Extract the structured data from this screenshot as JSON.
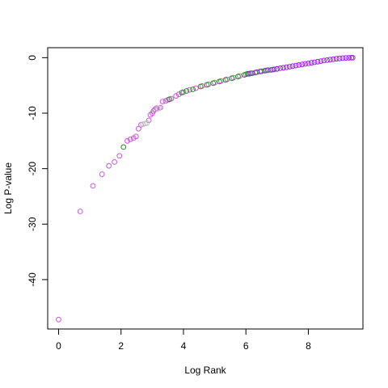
{
  "chart_data": {
    "type": "scatter",
    "title": "",
    "xlabel": "Log Rank",
    "ylabel": "Log P-value",
    "xlim": [
      -0.35,
      9.75
    ],
    "ylim": [
      -48.9,
      1.8
    ],
    "xticks": [
      0,
      2,
      4,
      6,
      8
    ],
    "yticks": [
      0,
      -10,
      -20,
      -30,
      -40
    ],
    "xtick_labels": [
      "0",
      "2",
      "4",
      "6",
      "8"
    ],
    "ytick_labels": [
      "0",
      "-10",
      "-20",
      "-30",
      "-40"
    ],
    "grid": false,
    "legend": "none",
    "colors": {
      "purple": "#cc55dd",
      "violet": "#a020f0",
      "green": "#228b22",
      "gray": "#bebebe"
    },
    "series": [
      {
        "color": "purple",
        "points": [
          [
            0,
            -47.2
          ],
          [
            0.69,
            -27.7
          ],
          [
            1.1,
            -23.1
          ],
          [
            1.39,
            -21.0
          ],
          [
            1.61,
            -19.5
          ],
          [
            1.79,
            -18.8
          ],
          [
            1.95,
            -17.7
          ],
          [
            2.2,
            -15.0
          ],
          [
            2.3,
            -14.7
          ],
          [
            2.4,
            -14.5
          ],
          [
            2.48,
            -14.2
          ],
          [
            2.56,
            -12.8
          ],
          [
            2.64,
            -12.1
          ],
          [
            2.89,
            -11.3
          ],
          [
            2.94,
            -10.3
          ],
          [
            3.0,
            -10.0
          ],
          [
            3.04,
            -9.6
          ],
          [
            3.09,
            -9.3
          ],
          [
            3.14,
            -9.1
          ],
          [
            3.26,
            -9.0
          ],
          [
            3.33,
            -7.9
          ],
          [
            3.43,
            -7.8
          ],
          [
            3.5,
            -7.6
          ],
          [
            3.61,
            -7.4
          ],
          [
            3.76,
            -6.9
          ],
          [
            3.85,
            -6.6
          ],
          [
            4.0,
            -6.2
          ],
          [
            4.2,
            -5.8
          ],
          [
            4.4,
            -5.5
          ],
          [
            4.6,
            -5.1
          ],
          [
            4.8,
            -4.8
          ],
          [
            5.0,
            -4.5
          ],
          [
            5.2,
            -4.2
          ],
          [
            5.4,
            -3.9
          ],
          [
            5.6,
            -3.6
          ],
          [
            5.8,
            -3.3
          ],
          [
            6.0,
            -3.0
          ]
        ]
      },
      {
        "color": "gray",
        "points": [
          [
            2.7,
            -12.0
          ],
          [
            2.77,
            -11.9
          ],
          [
            2.83,
            -11.8
          ],
          [
            3.18,
            -9.2
          ],
          [
            3.22,
            -9.1
          ]
        ]
      },
      {
        "color": "green",
        "points": [
          [
            2.08,
            -16.1
          ],
          [
            3.55,
            -7.5
          ],
          [
            3.95,
            -6.3
          ],
          [
            4.1,
            -6.0
          ],
          [
            4.3,
            -5.7
          ],
          [
            4.55,
            -5.2
          ],
          [
            4.75,
            -4.9
          ],
          [
            4.95,
            -4.6
          ],
          [
            5.15,
            -4.3
          ],
          [
            5.35,
            -4.0
          ],
          [
            5.55,
            -3.7
          ],
          [
            5.75,
            -3.4
          ],
          [
            5.95,
            -3.1
          ],
          [
            6.05,
            -2.9
          ],
          [
            6.15,
            -2.8
          ],
          [
            6.3,
            -2.7
          ],
          [
            6.45,
            -2.5
          ],
          [
            6.6,
            -2.35
          ],
          [
            6.7,
            -2.25
          ],
          [
            6.85,
            -2.15
          ],
          [
            7.0,
            -2.05
          ]
        ]
      },
      {
        "color": "violet",
        "points": [
          [
            6.1,
            -2.9
          ],
          [
            6.2,
            -2.8
          ],
          [
            6.35,
            -2.6
          ],
          [
            6.5,
            -2.45
          ],
          [
            6.65,
            -2.3
          ],
          [
            6.8,
            -2.2
          ],
          [
            6.9,
            -2.1
          ],
          [
            7.0,
            -2.0
          ],
          [
            7.1,
            -1.9
          ],
          [
            7.2,
            -1.82
          ],
          [
            7.3,
            -1.72
          ],
          [
            7.4,
            -1.62
          ],
          [
            7.5,
            -1.52
          ],
          [
            7.6,
            -1.42
          ],
          [
            7.7,
            -1.32
          ],
          [
            7.8,
            -1.22
          ],
          [
            7.9,
            -1.12
          ],
          [
            8.0,
            -1.02
          ],
          [
            8.1,
            -0.92
          ],
          [
            8.2,
            -0.82
          ],
          [
            8.3,
            -0.72
          ],
          [
            8.4,
            -0.62
          ],
          [
            8.5,
            -0.52
          ],
          [
            8.6,
            -0.44
          ],
          [
            8.7,
            -0.36
          ],
          [
            8.8,
            -0.28
          ],
          [
            8.9,
            -0.2
          ],
          [
            9.0,
            -0.14
          ],
          [
            9.1,
            -0.08
          ],
          [
            9.2,
            -0.04
          ],
          [
            9.3,
            -0.02
          ],
          [
            9.38,
            0.0
          ],
          [
            9.42,
            0.0
          ]
        ]
      }
    ]
  }
}
